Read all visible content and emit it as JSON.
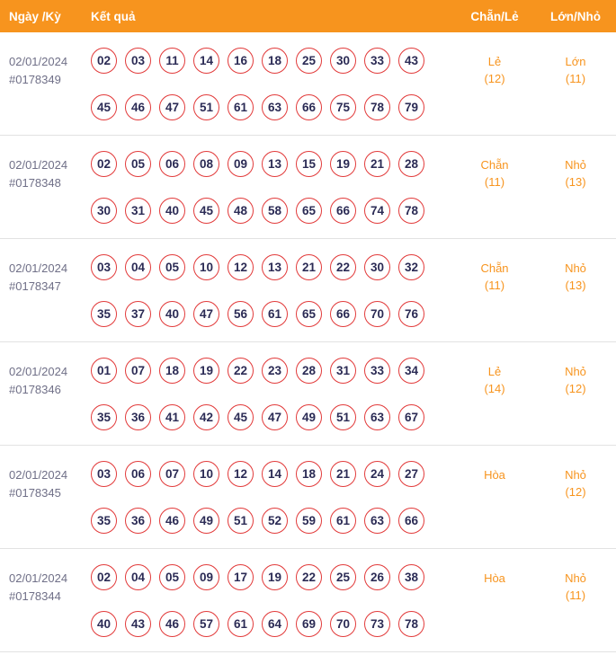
{
  "header": {
    "col_date": "Ngày /Kỳ",
    "col_result": "Kết quả",
    "col_evenodd": "Chẵn/Lẻ",
    "col_bigsmall": "Lớn/Nhỏ"
  },
  "colors": {
    "header_bg": "#f7941e",
    "accent_orange": "#f7941e",
    "ball_border": "#e23b3b",
    "ball_text": "#2b2b55",
    "date_text": "#6f6f87",
    "divider": "#e2e2e2"
  },
  "rows": [
    {
      "date": "02/01/2024",
      "period": "#0178349",
      "numbers_line1": [
        "02",
        "03",
        "11",
        "14",
        "16",
        "18",
        "25",
        "30",
        "33",
        "43"
      ],
      "numbers_line2": [
        "45",
        "46",
        "47",
        "51",
        "61",
        "63",
        "66",
        "75",
        "78",
        "79"
      ],
      "evenodd": "Lẻ",
      "evenodd_count": "(12)",
      "bigsmall": "Lớn",
      "bigsmall_count": "(11)"
    },
    {
      "date": "02/01/2024",
      "period": "#0178348",
      "numbers_line1": [
        "02",
        "05",
        "06",
        "08",
        "09",
        "13",
        "15",
        "19",
        "21",
        "28"
      ],
      "numbers_line2": [
        "30",
        "31",
        "40",
        "45",
        "48",
        "58",
        "65",
        "66",
        "74",
        "78"
      ],
      "evenodd": "Chẵn",
      "evenodd_count": "(11)",
      "bigsmall": "Nhỏ",
      "bigsmall_count": "(13)"
    },
    {
      "date": "02/01/2024",
      "period": "#0178347",
      "numbers_line1": [
        "03",
        "04",
        "05",
        "10",
        "12",
        "13",
        "21",
        "22",
        "30",
        "32"
      ],
      "numbers_line2": [
        "35",
        "37",
        "40",
        "47",
        "56",
        "61",
        "65",
        "66",
        "70",
        "76"
      ],
      "evenodd": "Chẵn",
      "evenodd_count": "(11)",
      "bigsmall": "Nhỏ",
      "bigsmall_count": "(13)"
    },
    {
      "date": "02/01/2024",
      "period": "#0178346",
      "numbers_line1": [
        "01",
        "07",
        "18",
        "19",
        "22",
        "23",
        "28",
        "31",
        "33",
        "34"
      ],
      "numbers_line2": [
        "35",
        "36",
        "41",
        "42",
        "45",
        "47",
        "49",
        "51",
        "63",
        "67"
      ],
      "evenodd": "Lẻ",
      "evenodd_count": "(14)",
      "bigsmall": "Nhỏ",
      "bigsmall_count": "(12)"
    },
    {
      "date": "02/01/2024",
      "period": "#0178345",
      "numbers_line1": [
        "03",
        "06",
        "07",
        "10",
        "12",
        "14",
        "18",
        "21",
        "24",
        "27"
      ],
      "numbers_line2": [
        "35",
        "36",
        "46",
        "49",
        "51",
        "52",
        "59",
        "61",
        "63",
        "66"
      ],
      "evenodd": "Hòa",
      "evenodd_count": "",
      "bigsmall": "Nhỏ",
      "bigsmall_count": "(12)"
    },
    {
      "date": "02/01/2024",
      "period": "#0178344",
      "numbers_line1": [
        "02",
        "04",
        "05",
        "09",
        "17",
        "19",
        "22",
        "25",
        "26",
        "38"
      ],
      "numbers_line2": [
        "40",
        "43",
        "46",
        "57",
        "61",
        "64",
        "69",
        "70",
        "73",
        "78"
      ],
      "evenodd": "Hòa",
      "evenodd_count": "",
      "bigsmall": "Nhỏ",
      "bigsmall_count": "(11)"
    }
  ]
}
